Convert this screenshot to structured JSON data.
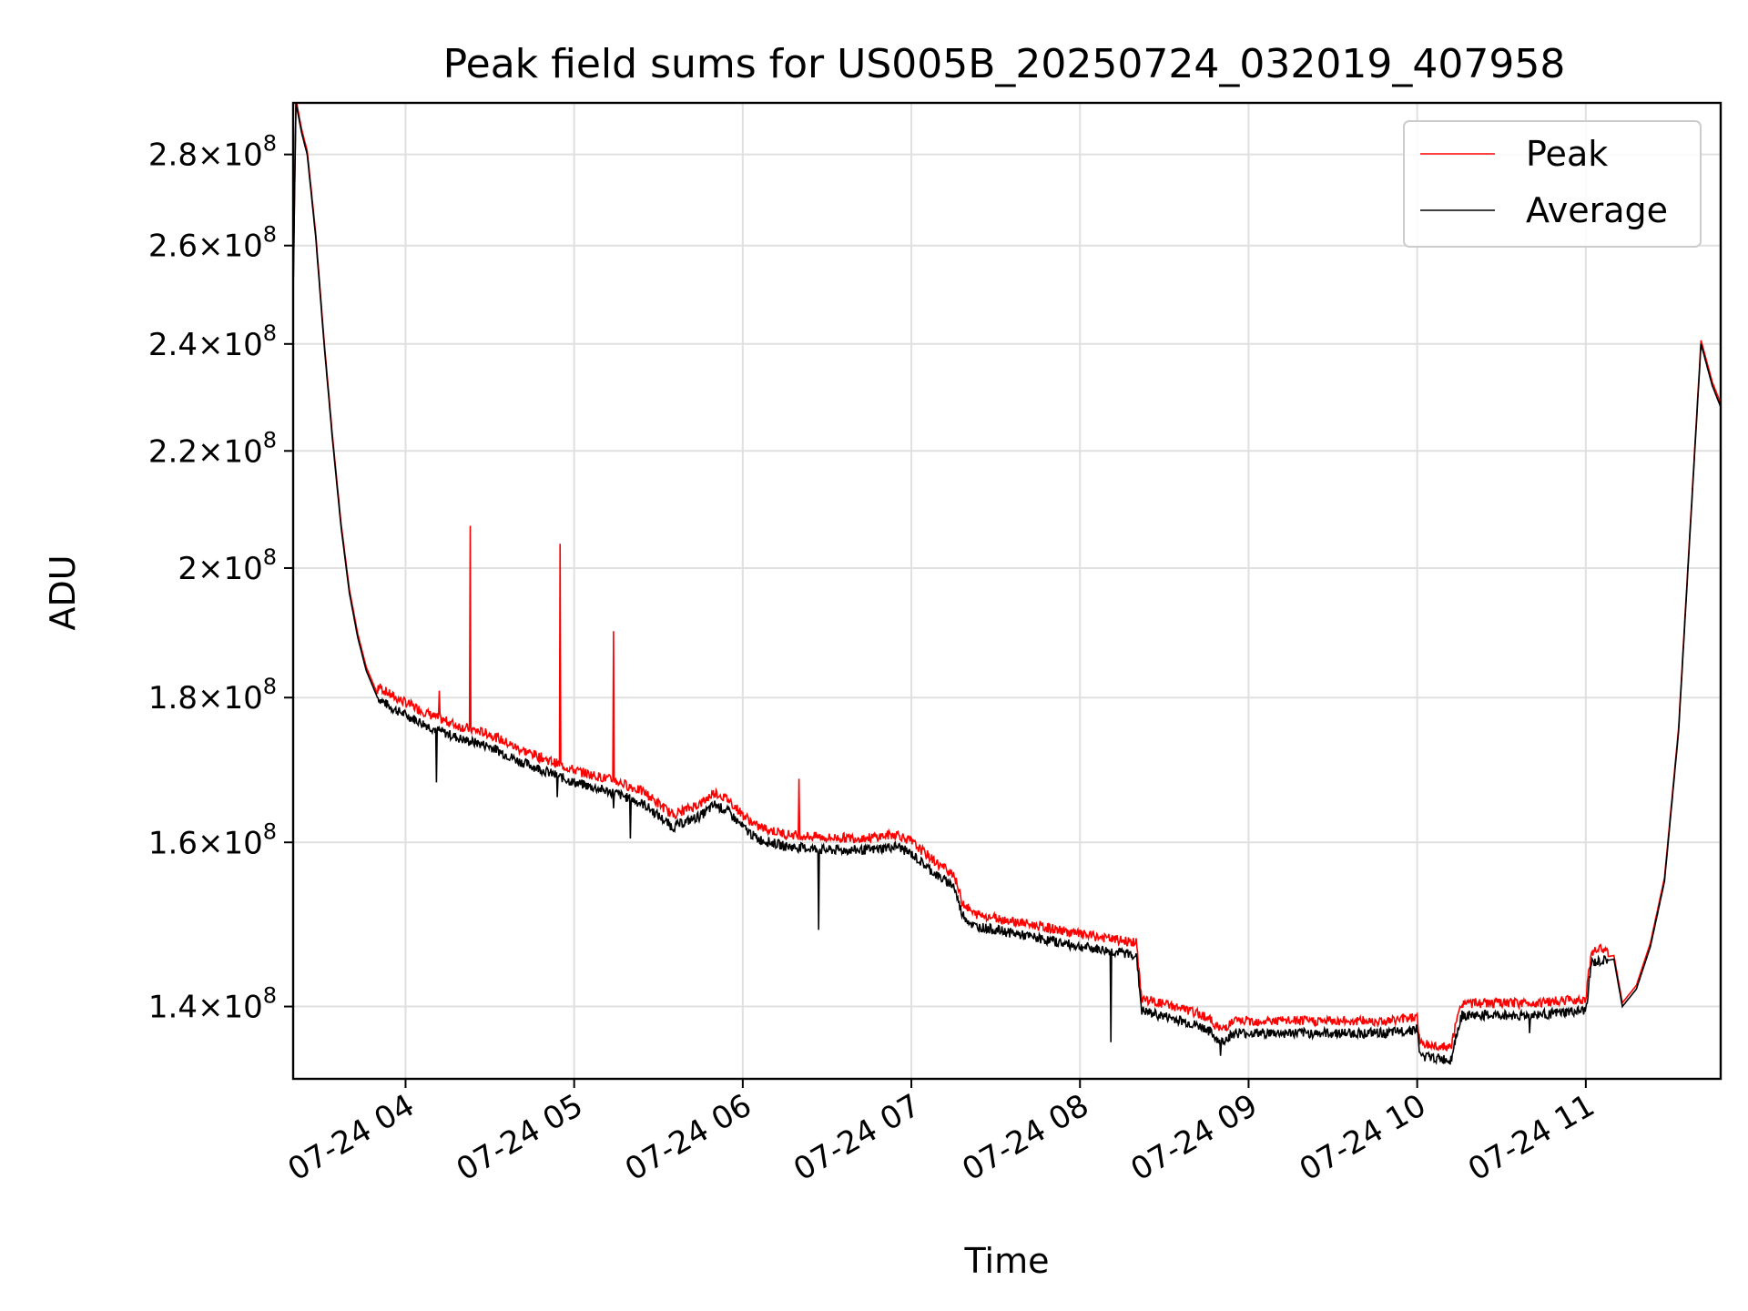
{
  "chart_data": {
    "type": "line",
    "title": "Peak field sums for US005B_20250724_032019_407958",
    "xlabel": "Time",
    "ylabel": "ADU",
    "yscale": "log",
    "grid": true,
    "legend_position": "upper right",
    "xlim": [
      "2025-07-24 03:20",
      "2025-07-24 11:48"
    ],
    "ylim": [
      132000000,
      292000000
    ],
    "x_ticks": [
      {
        "t": "2025-07-24 04:00",
        "label": "07-24 04"
      },
      {
        "t": "2025-07-24 05:00",
        "label": "07-24 05"
      },
      {
        "t": "2025-07-24 06:00",
        "label": "07-24 06"
      },
      {
        "t": "2025-07-24 07:00",
        "label": "07-24 07"
      },
      {
        "t": "2025-07-24 08:00",
        "label": "07-24 08"
      },
      {
        "t": "2025-07-24 09:00",
        "label": "07-24 09"
      },
      {
        "t": "2025-07-24 10:00",
        "label": "07-24 10"
      },
      {
        "t": "2025-07-24 11:00",
        "label": "07-24 11"
      }
    ],
    "y_ticks": [
      {
        "value": 140000000,
        "mantissa": "1.4",
        "base": "10",
        "exp": "8"
      },
      {
        "value": 160000000,
        "mantissa": "1.6",
        "base": "10",
        "exp": "8"
      },
      {
        "value": 180000000,
        "mantissa": "1.8",
        "base": "10",
        "exp": "8"
      },
      {
        "value": 200000000,
        "mantissa": "2",
        "base": "10",
        "exp": "8"
      },
      {
        "value": 220000000,
        "mantissa": "2.2",
        "base": "10",
        "exp": "8"
      },
      {
        "value": 240000000,
        "mantissa": "2.4",
        "base": "10",
        "exp": "8"
      },
      {
        "value": 260000000,
        "mantissa": "2.6",
        "base": "10",
        "exp": "8"
      },
      {
        "value": 280000000,
        "mantissa": "2.8",
        "base": "10",
        "exp": "8"
      }
    ],
    "series": [
      {
        "name": "Peak",
        "color": "#ff0000"
      },
      {
        "name": "Average",
        "color": "#000000"
      }
    ],
    "average_points": [
      [
        "2025-07-24 03:20",
        250000000
      ],
      [
        "2025-07-24 03:21",
        292000000
      ],
      [
        "2025-07-24 03:23",
        285000000
      ],
      [
        "2025-07-24 03:25",
        280000000
      ],
      [
        "2025-07-24 03:28",
        262000000
      ],
      [
        "2025-07-24 03:31",
        240000000
      ],
      [
        "2025-07-24 03:34",
        222000000
      ],
      [
        "2025-07-24 03:37",
        207000000
      ],
      [
        "2025-07-24 03:40",
        196000000
      ],
      [
        "2025-07-24 03:43",
        189000000
      ],
      [
        "2025-07-24 03:46",
        184000000
      ],
      [
        "2025-07-24 03:50",
        180000000
      ],
      [
        "2025-07-24 03:55",
        178500000
      ],
      [
        "2025-07-24 04:00",
        177500000
      ],
      [
        "2025-07-24 04:10",
        175500000
      ],
      [
        "2025-07-24 04:20",
        174000000
      ],
      [
        "2025-07-24 04:30",
        173000000
      ],
      [
        "2025-07-24 04:40",
        171000000
      ],
      [
        "2025-07-24 04:50",
        169500000
      ],
      [
        "2025-07-24 05:00",
        168000000
      ],
      [
        "2025-07-24 05:15",
        166500000
      ],
      [
        "2025-07-24 05:25",
        165000000
      ],
      [
        "2025-07-24 05:35",
        162000000
      ],
      [
        "2025-07-24 05:45",
        163500000
      ],
      [
        "2025-07-24 05:50",
        165000000
      ],
      [
        "2025-07-24 05:55",
        164000000
      ],
      [
        "2025-07-24 06:00",
        162000000
      ],
      [
        "2025-07-24 06:05",
        160500000
      ],
      [
        "2025-07-24 06:15",
        159500000
      ],
      [
        "2025-07-24 06:30",
        159000000
      ],
      [
        "2025-07-24 06:45",
        159000000
      ],
      [
        "2025-07-24 06:55",
        159500000
      ],
      [
        "2025-07-24 07:00",
        158500000
      ],
      [
        "2025-07-24 07:05",
        157000000
      ],
      [
        "2025-07-24 07:10",
        155500000
      ],
      [
        "2025-07-24 07:15",
        154500000
      ],
      [
        "2025-07-24 07:18",
        151000000
      ],
      [
        "2025-07-24 07:22",
        149500000
      ],
      [
        "2025-07-24 07:30",
        149000000
      ],
      [
        "2025-07-24 07:45",
        148000000
      ],
      [
        "2025-07-24 08:00",
        147000000
      ],
      [
        "2025-07-24 08:10",
        146500000
      ],
      [
        "2025-07-24 08:20",
        146000000
      ],
      [
        "2025-07-24 08:22",
        139500000
      ],
      [
        "2025-07-24 08:35",
        138500000
      ],
      [
        "2025-07-24 08:45",
        137500000
      ],
      [
        "2025-07-24 08:50",
        136000000
      ],
      [
        "2025-07-24 08:55",
        137000000
      ],
      [
        "2025-07-24 09:10",
        137000000
      ],
      [
        "2025-07-24 09:30",
        137000000
      ],
      [
        "2025-07-24 09:50",
        137000000
      ],
      [
        "2025-07-24 10:00",
        137500000
      ],
      [
        "2025-07-24 10:01",
        134500000
      ],
      [
        "2025-07-24 10:12",
        134000000
      ],
      [
        "2025-07-24 10:14",
        137000000
      ],
      [
        "2025-07-24 10:16",
        139000000
      ],
      [
        "2025-07-24 10:40",
        139000000
      ],
      [
        "2025-07-24 11:00",
        139500000
      ],
      [
        "2025-07-24 11:02",
        145000000
      ],
      [
        "2025-07-24 11:10",
        145500000
      ],
      [
        "2025-07-24 11:13",
        140000000
      ],
      [
        "2025-07-24 11:18",
        142000000
      ],
      [
        "2025-07-24 11:23",
        147000000
      ],
      [
        "2025-07-24 11:28",
        155000000
      ],
      [
        "2025-07-24 11:33",
        175000000
      ],
      [
        "2025-07-24 11:37",
        205000000
      ],
      [
        "2025-07-24 11:41",
        240000000
      ],
      [
        "2025-07-24 11:45",
        232000000
      ],
      [
        "2025-07-24 11:48",
        228000000
      ]
    ],
    "peak_spikes": [
      {
        "t": "2025-07-24 04:12",
        "value": 181000000
      },
      {
        "t": "2025-07-24 04:23",
        "value": 207000000
      },
      {
        "t": "2025-07-24 04:55",
        "value": 204000000
      },
      {
        "t": "2025-07-24 05:14",
        "value": 190000000
      },
      {
        "t": "2025-07-24 06:20",
        "value": 168500000
      }
    ],
    "average_dips": [
      {
        "t": "2025-07-24 04:11",
        "value": 168000000
      },
      {
        "t": "2025-07-24 04:54",
        "value": 166000000
      },
      {
        "t": "2025-07-24 05:14",
        "value": 164500000
      },
      {
        "t": "2025-07-24 05:20",
        "value": 160500000
      },
      {
        "t": "2025-07-24 06:27",
        "value": 149000000
      },
      {
        "t": "2025-07-24 08:11",
        "value": 136000000
      },
      {
        "t": "2025-07-24 08:50",
        "value": 134500000
      },
      {
        "t": "2025-07-24 10:12",
        "value": 134500000
      },
      {
        "t": "2025-07-24 10:40",
        "value": 137000000
      }
    ]
  }
}
